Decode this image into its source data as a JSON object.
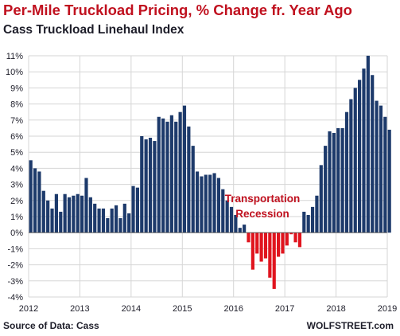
{
  "chart_data": {
    "type": "bar",
    "title": "Per-Mile Truckload Pricing, % Change fr. Year Ago",
    "subtitle": "Cass Truckload Linehaul Index",
    "source": "Source of Data: Cass",
    "brand": "WOLFSTREET.com",
    "annotation": [
      "Transportation",
      "Recession"
    ],
    "ylim": [
      -4,
      11
    ],
    "yticks": [
      "-4%",
      "-3%",
      "-2%",
      "-1%",
      "0%",
      "1%",
      "2%",
      "3%",
      "4%",
      "5%",
      "6%",
      "7%",
      "8%",
      "9%",
      "10%",
      "11%"
    ],
    "xticks": [
      "2012",
      "2013",
      "2014",
      "2015",
      "2016",
      "2017",
      "2018",
      "2019"
    ],
    "x_start": "2012-01",
    "grid": true,
    "positive_color": "#1d3a6b",
    "negative_color": "#e0141e",
    "values": [
      4.5,
      4.0,
      3.8,
      2.6,
      2.0,
      1.5,
      2.4,
      1.3,
      2.4,
      2.2,
      2.3,
      2.4,
      2.3,
      3.4,
      2.2,
      1.8,
      1.5,
      1.5,
      0.9,
      1.5,
      1.7,
      0.9,
      1.8,
      1.2,
      2.9,
      2.8,
      6.0,
      5.8,
      5.9,
      5.7,
      7.2,
      7.1,
      6.9,
      7.3,
      6.9,
      7.5,
      7.9,
      6.6,
      5.4,
      3.8,
      3.5,
      3.6,
      3.6,
      3.7,
      3.4,
      2.7,
      2.0,
      1.6,
      1.1,
      0.3,
      0.5,
      -0.6,
      -2.3,
      -1.3,
      -1.8,
      -1.6,
      -2.8,
      -3.5,
      -1.5,
      -1.3,
      -0.8,
      -0.1,
      -0.6,
      -0.9,
      1.3,
      1.1,
      1.6,
      2.3,
      4.2,
      5.4,
      6.3,
      6.2,
      6.5,
      6.5,
      7.5,
      8.3,
      9.0,
      9.5,
      10.2,
      11.0,
      9.8,
      8.2,
      7.9,
      7.2,
      6.4
    ]
  }
}
